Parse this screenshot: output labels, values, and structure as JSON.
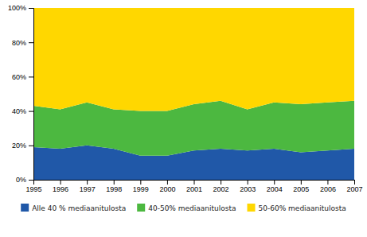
{
  "chart_data": {
    "type": "area",
    "stacked": true,
    "x": [
      1995,
      1996,
      1997,
      1998,
      1999,
      2000,
      2001,
      2002,
      2003,
      2004,
      2005,
      2006,
      2007
    ],
    "series": [
      {
        "name": "Alle 40 % mediaanitulosta",
        "color": "#2058A8",
        "values": [
          19,
          18,
          20,
          18,
          14,
          14,
          17,
          18,
          17,
          18,
          16,
          17,
          18
        ]
      },
      {
        "name": "40-50% mediaanitulosta",
        "color": "#4CB840",
        "values": [
          24,
          23,
          25,
          23,
          26,
          26,
          27,
          28,
          24,
          27,
          28,
          28,
          28
        ]
      },
      {
        "name": "50-60% mediaanitulosta",
        "color": "#FFD700",
        "values": [
          57,
          59,
          55,
          59,
          60,
          60,
          56,
          54,
          59,
          55,
          56,
          55,
          54
        ]
      }
    ],
    "xlim": [
      1995,
      2007
    ],
    "xticks": [
      1995,
      1996,
      1997,
      1998,
      1999,
      2000,
      2001,
      2002,
      2003,
      2004,
      2005,
      2006,
      2007
    ],
    "ylim": [
      0,
      100
    ],
    "yticks": [
      {
        "value": 0,
        "label": "0%"
      },
      {
        "value": 20,
        "label": "20%"
      },
      {
        "value": 40,
        "label": "40%"
      },
      {
        "value": 60,
        "label": "60%"
      },
      {
        "value": 80,
        "label": "80%"
      },
      {
        "value": 100,
        "label": "100%"
      }
    ],
    "grid": false,
    "legend": "bottom"
  }
}
